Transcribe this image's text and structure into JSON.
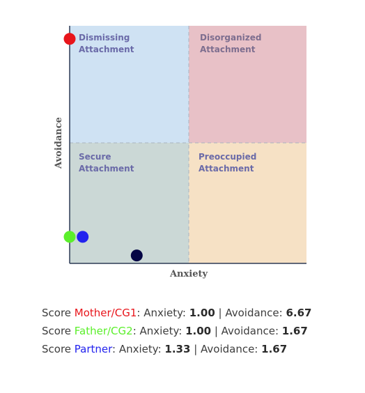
{
  "chart_data": {
    "type": "scatter",
    "xlabel": "Anxiety",
    "ylabel": "Avoidance",
    "xlim": [
      1,
      7
    ],
    "ylim": [
      1,
      7
    ],
    "grid": false,
    "quadrants": [
      {
        "key": "dismissing",
        "label_line1": "Dismissing",
        "label_line2": "Attachment",
        "color": "#cfe2f3",
        "text_color": "#6a6aa8"
      },
      {
        "key": "disorganized",
        "label_line1": "Disorganized",
        "label_line2": "Attachment",
        "color": "#e8c1c7",
        "text_color": "#7d6e8f"
      },
      {
        "key": "secure",
        "label_line1": "Secure",
        "label_line2": "Attachment",
        "color": "#cbd8d6",
        "text_color": "#6a6aa8"
      },
      {
        "key": "preoccupied",
        "label_line1": "Preoccupied",
        "label_line2": "Attachment",
        "color": "#f6e1c5",
        "text_color": "#6a6aa8"
      }
    ],
    "series": [
      {
        "name": "Mother/CG1",
        "x": 1.0,
        "y": 6.67,
        "color": "#e8151b"
      },
      {
        "name": "Father/CG2",
        "x": 1.0,
        "y": 1.67,
        "color": "#5bef2b"
      },
      {
        "name": "Partner",
        "x": 1.33,
        "y": 1.67,
        "color": "#2222ee"
      },
      {
        "name": "",
        "x": 2.7,
        "y": 1.2,
        "color": "#050545"
      }
    ]
  },
  "scores": [
    {
      "prefix": "Score ",
      "name": "Mother/CG1",
      "color": "#e8151b",
      "anxiety_label": ": Anxiety: ",
      "anxiety": "1.00",
      "sep": " | Avoidance: ",
      "avoidance": "6.67"
    },
    {
      "prefix": "Score ",
      "name": "Father/CG2",
      "color": "#5bef2b",
      "anxiety_label": ": Anxiety: ",
      "anxiety": "1.00",
      "sep": " | Avoidance: ",
      "avoidance": "1.67"
    },
    {
      "prefix": "Score ",
      "name": "Partner",
      "color": "#2222ee",
      "anxiety_label": ": Anxiety: ",
      "anxiety": "1.33",
      "sep": " | Avoidance: ",
      "avoidance": "1.67"
    }
  ]
}
